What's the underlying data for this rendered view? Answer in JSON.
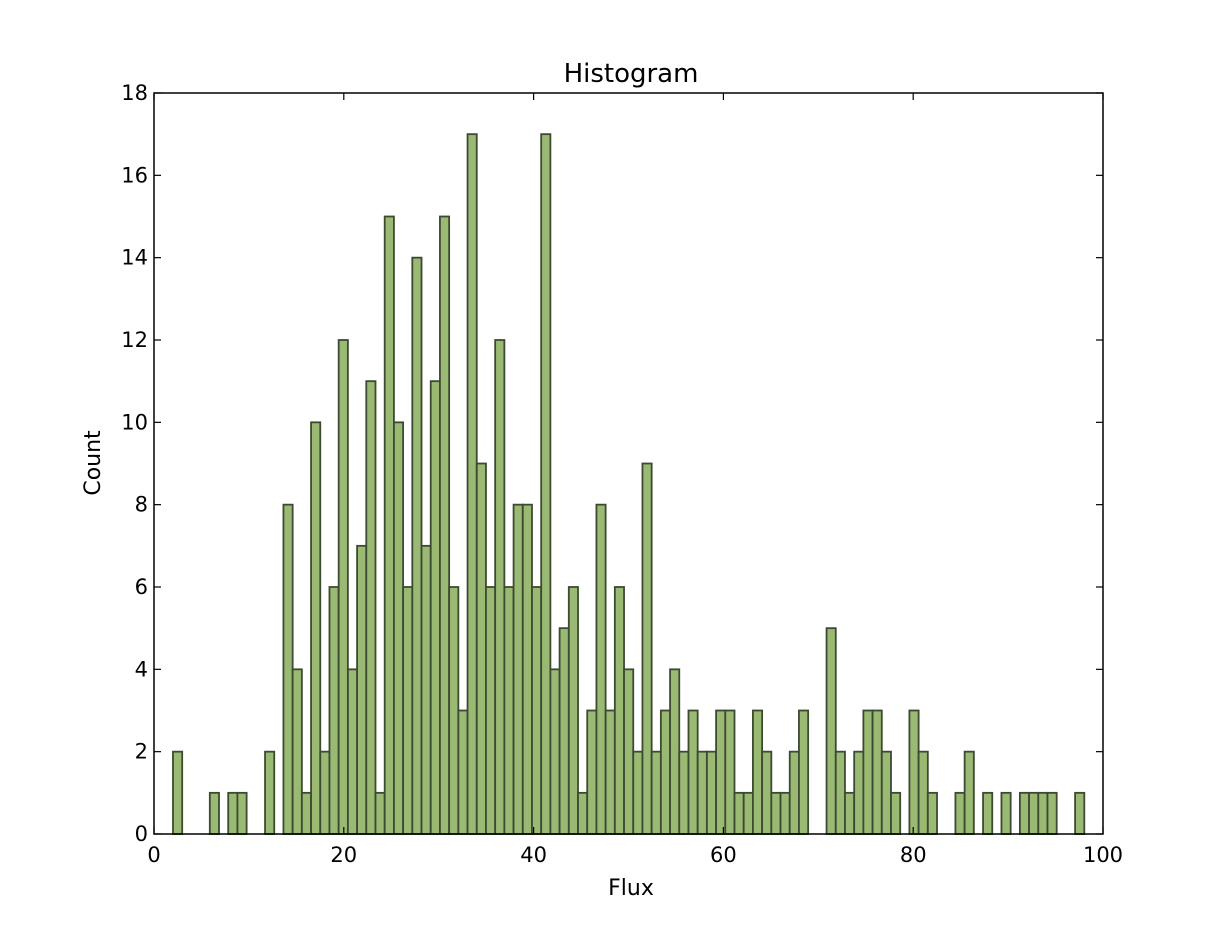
{
  "chart_data": {
    "type": "bar",
    "subtype": "histogram",
    "title": "Histogram",
    "xlabel": "Flux",
    "ylabel": "Count",
    "xlim": [
      0,
      100
    ],
    "ylim": [
      0,
      18
    ],
    "xticks": [
      "0",
      "20",
      "40",
      "60",
      "80",
      "100"
    ],
    "yticks": [
      "0",
      "2",
      "4",
      "6",
      "8",
      "10",
      "12",
      "14",
      "16",
      "18"
    ],
    "grid": false,
    "legend": "none",
    "bar_color": "#9ab973",
    "edge_color": "#3d4a32",
    "bins": {
      "start": 2,
      "width": 0.97,
      "counts": [
        2,
        0,
        0,
        0,
        1,
        0,
        1,
        1,
        0,
        0,
        2,
        0,
        8,
        4,
        1,
        10,
        2,
        6,
        12,
        4,
        7,
        11,
        1,
        15,
        10,
        6,
        14,
        7,
        11,
        15,
        6,
        3,
        17,
        9,
        6,
        12,
        6,
        8,
        8,
        6,
        17,
        4,
        5,
        6,
        1,
        3,
        8,
        3,
        6,
        4,
        2,
        9,
        2,
        3,
        4,
        2,
        3,
        2,
        2,
        3,
        3,
        1,
        1,
        3,
        2,
        1,
        1,
        2,
        3,
        0,
        0,
        5,
        2,
        1,
        2,
        3,
        3,
        2,
        1,
        0,
        3,
        2,
        1,
        0,
        0,
        1,
        2,
        0,
        1,
        0,
        1,
        0,
        1,
        1,
        1,
        1,
        0,
        0,
        1
      ]
    }
  }
}
